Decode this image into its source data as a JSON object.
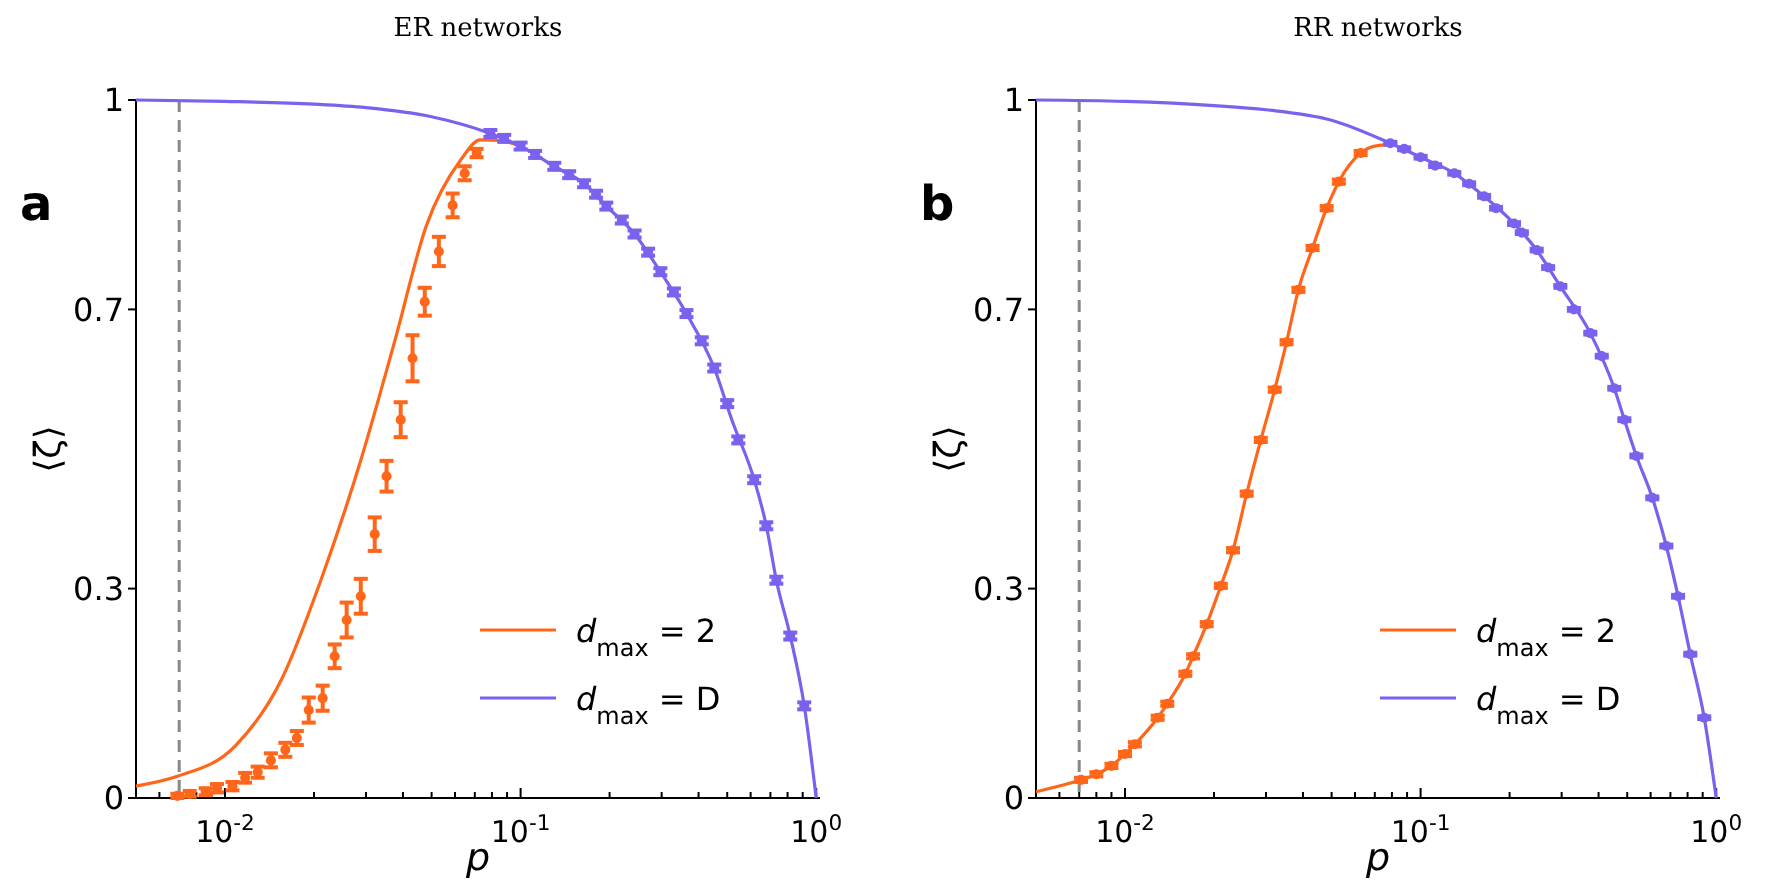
{
  "chart_data": [
    {
      "type": "line",
      "title": "ER networks",
      "xlabel": "p",
      "ylabel": "⟨ζ⟩",
      "annotations": [
        "a"
      ],
      "log": "x",
      "legend": "bottom right",
      "xlim": [
        0.005,
        1.03
      ],
      "ylim": [
        0,
        1
      ],
      "xticks": [
        {
          "value": 0.005,
          "label": null
        },
        {
          "value": 0.006,
          "label": null
        },
        {
          "value": 0.007,
          "label": null
        },
        {
          "value": 0.008,
          "label": null
        },
        {
          "value": 0.009,
          "label": null
        },
        {
          "value": 0.01,
          "label": "10$^{-2}$"
        },
        {
          "value": 0.02,
          "label": null
        },
        {
          "value": 0.03,
          "label": null
        },
        {
          "value": 0.04,
          "label": null
        },
        {
          "value": 0.05,
          "label": null
        },
        {
          "value": 0.06,
          "label": null
        },
        {
          "value": 0.07,
          "label": null
        },
        {
          "value": 0.08,
          "label": null
        },
        {
          "value": 0.09,
          "label": null
        },
        {
          "value": 0.1,
          "label": "10$^{-1}$"
        },
        {
          "value": 0.2,
          "label": null
        },
        {
          "value": 0.3,
          "label": null
        },
        {
          "value": 0.4,
          "label": null
        },
        {
          "value": 0.5,
          "label": null
        },
        {
          "value": 0.6,
          "label": null
        },
        {
          "value": 0.7,
          "label": null
        },
        {
          "value": 0.8,
          "label": null
        },
        {
          "value": 0.9,
          "label": null
        },
        {
          "value": 1,
          "label": "10$^{0}$"
        }
      ],
      "yticks": [
        0,
        0.3,
        0.7,
        1
      ],
      "ref_lines": [
        {
          "axis": "x",
          "value": 0.007,
          "color": "#888888",
          "line_style": "dashed"
        }
      ],
      "series": [
        {
          "name": "d$_{max}$ = 2",
          "type": "line",
          "color": "#ff6619",
          "x": [
            0.005,
            0.0069,
            0.0108,
            0.0155,
            0.0211,
            0.0288,
            0.0376,
            0.048,
            0.0627,
            0.073,
            0.085,
            0.1
          ],
          "values": [
            0.017,
            0.031,
            0.074,
            0.169,
            0.312,
            0.484,
            0.656,
            0.82,
            0.914,
            0.943,
            0.942,
            0.934
          ]
        },
        {
          "name": "d$_{max}$ = D",
          "type": "line",
          "color": "#7b61ee",
          "x": [
            0.005,
            0.01,
            0.02,
            0.03,
            0.05,
            0.079,
            0.1,
            0.13,
            0.164,
            0.195,
            0.243,
            0.297,
            0.364,
            0.452,
            0.52,
            0.617,
            0.678,
            0.733,
            0.817,
            0.911,
            1
          ],
          "values": [
            1,
            0.998,
            0.994,
            0.989,
            0.976,
            0.952,
            0.934,
            0.905,
            0.88,
            0.848,
            0.808,
            0.754,
            0.694,
            0.616,
            0.54,
            0.456,
            0.39,
            0.312,
            0.232,
            0.132,
            0
          ]
        },
        {
          "type": "scatter",
          "color": "#ff6619",
          "x": [
            0.0069,
            0.0076,
            0.0086,
            0.0094,
            0.0106,
            0.0117,
            0.0129,
            0.0143,
            0.016,
            0.0175,
            0.0192,
            0.0214,
            0.0235,
            0.0258,
            0.0288,
            0.0321,
            0.0352,
            0.0393,
            0.0431,
            0.0474,
            0.0529,
            0.0589,
            0.0647,
            0.071
          ],
          "values": [
            0.003,
            0.006,
            0.009,
            0.014,
            0.017,
            0.029,
            0.037,
            0.054,
            0.069,
            0.086,
            0.126,
            0.143,
            0.203,
            0.255,
            0.289,
            0.378,
            0.461,
            0.542,
            0.63,
            0.711,
            0.783,
            0.849,
            0.895,
            0.924
          ],
          "errors": [
            0.003,
            0.004,
            0.005,
            0.006,
            0.006,
            0.007,
            0.008,
            0.01,
            0.01,
            0.01,
            0.018,
            0.018,
            0.017,
            0.025,
            0.025,
            0.024,
            0.022,
            0.025,
            0.033,
            0.02,
            0.021,
            0.017,
            0.01,
            0.006
          ]
        },
        {
          "type": "scatter",
          "color": "#7b61ee",
          "x": [
            0.079,
            0.088,
            0.1,
            0.112,
            0.13,
            0.146,
            0.164,
            0.18,
            0.195,
            0.22,
            0.243,
            0.27,
            0.297,
            0.33,
            0.364,
            0.41,
            0.452,
            0.5,
            0.545,
            0.617,
            0.678,
            0.733,
            0.817,
            0.911
          ],
          "values": [
            0.952,
            0.945,
            0.934,
            0.922,
            0.905,
            0.893,
            0.88,
            0.865,
            0.848,
            0.828,
            0.808,
            0.782,
            0.754,
            0.725,
            0.694,
            0.655,
            0.616,
            0.565,
            0.513,
            0.456,
            0.39,
            0.312,
            0.232,
            0.132
          ],
          "errors": [
            0.005,
            0.005,
            0.005,
            0.005,
            0.005,
            0.005,
            0.005,
            0.005,
            0.005,
            0.005,
            0.005,
            0.005,
            0.005,
            0.005,
            0.005,
            0.005,
            0.005,
            0.005,
            0.005,
            0.005,
            0.005,
            0.005,
            0.005,
            0.005
          ]
        }
      ]
    },
    {
      "type": "line",
      "title": "RR networks",
      "xlabel": "p",
      "ylabel": "⟨ζ⟩",
      "annotations": [
        "b"
      ],
      "log": "x",
      "legend": "bottom right",
      "xlim": [
        0.005,
        1.03
      ],
      "ylim": [
        0,
        1
      ],
      "xticks": [
        {
          "value": 0.005,
          "label": null
        },
        {
          "value": 0.006,
          "label": null
        },
        {
          "value": 0.007,
          "label": null
        },
        {
          "value": 0.008,
          "label": null
        },
        {
          "value": 0.009,
          "label": null
        },
        {
          "value": 0.01,
          "label": "10$^{-2}$"
        },
        {
          "value": 0.02,
          "label": null
        },
        {
          "value": 0.03,
          "label": null
        },
        {
          "value": 0.04,
          "label": null
        },
        {
          "value": 0.05,
          "label": null
        },
        {
          "value": 0.06,
          "label": null
        },
        {
          "value": 0.07,
          "label": null
        },
        {
          "value": 0.08,
          "label": null
        },
        {
          "value": 0.09,
          "label": null
        },
        {
          "value": 0.1,
          "label": "10$^{-1}$"
        },
        {
          "value": 0.2,
          "label": null
        },
        {
          "value": 0.3,
          "label": null
        },
        {
          "value": 0.4,
          "label": null
        },
        {
          "value": 0.5,
          "label": null
        },
        {
          "value": 0.6,
          "label": null
        },
        {
          "value": 0.7,
          "label": null
        },
        {
          "value": 0.8,
          "label": null
        },
        {
          "value": 0.9,
          "label": null
        },
        {
          "value": 1,
          "label": "10$^{0}$"
        }
      ],
      "yticks": [
        0,
        0.3,
        0.7,
        1
      ],
      "ref_lines": [
        {
          "axis": "x",
          "value": 0.007,
          "color": "#888888",
          "line_style": "dashed"
        }
      ],
      "series": [
        {
          "name": "d$_{max}$ = 2",
          "type": "line",
          "color": "#ff6619",
          "x": [
            0.005,
            0.0071,
            0.008,
            0.009,
            0.01,
            0.0108,
            0.0129,
            0.0139,
            0.016,
            0.017,
            0.0189,
            0.0211,
            0.0232,
            0.0258,
            0.0288,
            0.0321,
            0.0352,
            0.0386,
            0.0431,
            0.0481,
            0.0529,
            0.0627,
            0.07,
            0.079
          ],
          "values": [
            0.009,
            0.026,
            0.034,
            0.046,
            0.063,
            0.077,
            0.115,
            0.135,
            0.178,
            0.203,
            0.249,
            0.304,
            0.355,
            0.436,
            0.513,
            0.585,
            0.653,
            0.728,
            0.788,
            0.845,
            0.883,
            0.924,
            0.934,
            0.936
          ]
        },
        {
          "name": "d$_{max}$ = D",
          "type": "line",
          "color": "#7b61ee",
          "x": [
            0.005,
            0.01,
            0.02,
            0.03,
            0.05,
            0.079,
            0.1,
            0.13,
            0.164,
            0.207,
            0.247,
            0.297,
            0.375,
            0.452,
            0.489,
            0.537,
            0.608,
            0.678,
            0.743,
            0.817,
            0.911,
            1
          ],
          "values": [
            1,
            0.998,
            0.992,
            0.986,
            0.971,
            0.938,
            0.918,
            0.895,
            0.862,
            0.823,
            0.785,
            0.733,
            0.666,
            0.587,
            0.542,
            0.49,
            0.43,
            0.361,
            0.289,
            0.206,
            0.115,
            0
          ]
        },
        {
          "type": "scatter",
          "color": "#ff6619",
          "x": [
            0.0071,
            0.008,
            0.009,
            0.01,
            0.0108,
            0.0129,
            0.0139,
            0.016,
            0.017,
            0.0189,
            0.0211,
            0.0232,
            0.0258,
            0.0288,
            0.0321,
            0.0352,
            0.0386,
            0.0431,
            0.0481,
            0.0529,
            0.0627
          ],
          "values": [
            0.026,
            0.034,
            0.046,
            0.063,
            0.077,
            0.115,
            0.135,
            0.178,
            0.203,
            0.249,
            0.304,
            0.355,
            0.436,
            0.513,
            0.585,
            0.653,
            0.728,
            0.788,
            0.845,
            0.883,
            0.924
          ],
          "errors": [
            0.003,
            0.003,
            0.003,
            0.003,
            0.003,
            0.003,
            0.003,
            0.003,
            0.003,
            0.003,
            0.003,
            0.003,
            0.003,
            0.003,
            0.003,
            0.003,
            0.003,
            0.003,
            0.003,
            0.003,
            0.003
          ]
        },
        {
          "type": "scatter",
          "color": "#7b61ee",
          "x": [
            0.079,
            0.088,
            0.1,
            0.112,
            0.13,
            0.146,
            0.164,
            0.18,
            0.207,
            0.22,
            0.247,
            0.27,
            0.297,
            0.33,
            0.375,
            0.41,
            0.452,
            0.489,
            0.537,
            0.608,
            0.678,
            0.743,
            0.817,
            0.911
          ],
          "values": [
            0.938,
            0.93,
            0.918,
            0.906,
            0.895,
            0.88,
            0.862,
            0.845,
            0.823,
            0.81,
            0.785,
            0.76,
            0.733,
            0.7,
            0.666,
            0.633,
            0.587,
            0.542,
            0.49,
            0.43,
            0.361,
            0.289,
            0.206,
            0.115
          ],
          "errors": [
            0.002,
            0.002,
            0.002,
            0.002,
            0.002,
            0.002,
            0.002,
            0.002,
            0.002,
            0.002,
            0.002,
            0.002,
            0.002,
            0.002,
            0.002,
            0.002,
            0.002,
            0.002,
            0.002,
            0.002,
            0.002,
            0.002,
            0.002,
            0.002
          ]
        }
      ]
    }
  ]
}
